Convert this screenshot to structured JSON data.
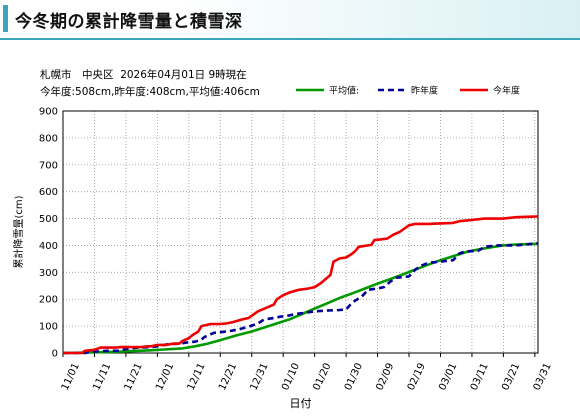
{
  "page": {
    "title": "今冬期の累計降雪量と積雪深",
    "location": "札幌市　中央区",
    "datetime": "2026年04月01日 9時現在",
    "summary": "今年度:508cm,昨年度:408cm,平均値:406cm"
  },
  "chart_data": {
    "type": "line",
    "ylabel": "累計降雪量(cm)",
    "xlabel": "日付",
    "ylim": [
      0,
      900
    ],
    "yticks": [
      0,
      100,
      200,
      300,
      400,
      500,
      600,
      700,
      800,
      900
    ],
    "xlim": [
      0,
      151
    ],
    "xticks": [
      {
        "d": 0,
        "label": "11/01"
      },
      {
        "d": 10,
        "label": "11/11"
      },
      {
        "d": 20,
        "label": "11/21"
      },
      {
        "d": 30,
        "label": "12/01"
      },
      {
        "d": 40,
        "label": "12/11"
      },
      {
        "d": 50,
        "label": "12/21"
      },
      {
        "d": 60,
        "label": "12/31"
      },
      {
        "d": 70,
        "label": "01/10"
      },
      {
        "d": 80,
        "label": "01/20"
      },
      {
        "d": 90,
        "label": "01/30"
      },
      {
        "d": 100,
        "label": "02/09"
      },
      {
        "d": 110,
        "label": "02/19"
      },
      {
        "d": 120,
        "label": "03/01"
      },
      {
        "d": 130,
        "label": "03/11"
      },
      {
        "d": 140,
        "label": "03/21"
      },
      {
        "d": 150,
        "label": "03/31"
      }
    ],
    "grid": true,
    "legend_position": "top-right",
    "series": [
      {
        "name": "平均値:",
        "color": "#009900",
        "dash": "solid",
        "points": [
          [
            0,
            0
          ],
          [
            8,
            2
          ],
          [
            12,
            3
          ],
          [
            18,
            5
          ],
          [
            22,
            7
          ],
          [
            28,
            10
          ],
          [
            32,
            13
          ],
          [
            38,
            17
          ],
          [
            42,
            25
          ],
          [
            46,
            35
          ],
          [
            50,
            48
          ],
          [
            55,
            65
          ],
          [
            60,
            80
          ],
          [
            64,
            95
          ],
          [
            68,
            110
          ],
          [
            72,
            125
          ],
          [
            76,
            145
          ],
          [
            80,
            165
          ],
          [
            84,
            185
          ],
          [
            88,
            205
          ],
          [
            92,
            222
          ],
          [
            96,
            240
          ],
          [
            100,
            258
          ],
          [
            104,
            275
          ],
          [
            108,
            292
          ],
          [
            112,
            310
          ],
          [
            116,
            328
          ],
          [
            120,
            345
          ],
          [
            124,
            360
          ],
          [
            128,
            375
          ],
          [
            132,
            385
          ],
          [
            136,
            393
          ],
          [
            140,
            400
          ],
          [
            144,
            403
          ],
          [
            148,
            405
          ],
          [
            151,
            406
          ]
        ]
      },
      {
        "name": "昨年度",
        "color": "#000099",
        "dash": "dashed",
        "points": [
          [
            0,
            0
          ],
          [
            7,
            0
          ],
          [
            8,
            3
          ],
          [
            10,
            5
          ],
          [
            14,
            8
          ],
          [
            18,
            8
          ],
          [
            20,
            15
          ],
          [
            24,
            20
          ],
          [
            28,
            22
          ],
          [
            30,
            25
          ],
          [
            33,
            32
          ],
          [
            37,
            35
          ],
          [
            40,
            40
          ],
          [
            42,
            42
          ],
          [
            44,
            50
          ],
          [
            45,
            60
          ],
          [
            48,
            75
          ],
          [
            52,
            80
          ],
          [
            53,
            82
          ],
          [
            56,
            88
          ],
          [
            58,
            95
          ],
          [
            60,
            102
          ],
          [
            62,
            110
          ],
          [
            64,
            125
          ],
          [
            67,
            130
          ],
          [
            69,
            135
          ],
          [
            72,
            140
          ],
          [
            74,
            145
          ],
          [
            77,
            150
          ],
          [
            80,
            155
          ],
          [
            84,
            158
          ],
          [
            88,
            160
          ],
          [
            90,
            162
          ],
          [
            92,
            188
          ],
          [
            95,
            210
          ],
          [
            97,
            235
          ],
          [
            100,
            240
          ],
          [
            102,
            245
          ],
          [
            104,
            265
          ],
          [
            106,
            280
          ],
          [
            110,
            285
          ],
          [
            112,
            310
          ],
          [
            114,
            325
          ],
          [
            116,
            335
          ],
          [
            120,
            340
          ],
          [
            124,
            345
          ],
          [
            126,
            370
          ],
          [
            128,
            378
          ],
          [
            132,
            380
          ],
          [
            134,
            395
          ],
          [
            138,
            400
          ],
          [
            144,
            400
          ],
          [
            151,
            408
          ]
        ]
      },
      {
        "name": "今年度",
        "color": "#ee0000",
        "dash": "solid",
        "points": [
          [
            0,
            0
          ],
          [
            6,
            0
          ],
          [
            7,
            8
          ],
          [
            10,
            12
          ],
          [
            12,
            20
          ],
          [
            17,
            20
          ],
          [
            18,
            22
          ],
          [
            25,
            22
          ],
          [
            27,
            25
          ],
          [
            28,
            25
          ],
          [
            30,
            30
          ],
          [
            33,
            30
          ],
          [
            35,
            35
          ],
          [
            37,
            35
          ],
          [
            38,
            45
          ],
          [
            40,
            55
          ],
          [
            41,
            65
          ],
          [
            43,
            80
          ],
          [
            44,
            100
          ],
          [
            47,
            108
          ],
          [
            50,
            108
          ],
          [
            52,
            110
          ],
          [
            54,
            115
          ],
          [
            57,
            125
          ],
          [
            59,
            130
          ],
          [
            62,
            155
          ],
          [
            65,
            170
          ],
          [
            67,
            180
          ],
          [
            68,
            200
          ],
          [
            70,
            215
          ],
          [
            72,
            225
          ],
          [
            75,
            235
          ],
          [
            78,
            240
          ],
          [
            80,
            245
          ],
          [
            82,
            260
          ],
          [
            84,
            280
          ],
          [
            85,
            290
          ],
          [
            86,
            340
          ],
          [
            88,
            352
          ],
          [
            90,
            355
          ],
          [
            92,
            370
          ],
          [
            93,
            380
          ],
          [
            94,
            395
          ],
          [
            98,
            402
          ],
          [
            99,
            420
          ],
          [
            103,
            425
          ],
          [
            105,
            440
          ],
          [
            107,
            450
          ],
          [
            110,
            475
          ],
          [
            112,
            480
          ],
          [
            116,
            480
          ],
          [
            120,
            482
          ],
          [
            124,
            484
          ],
          [
            126,
            490
          ],
          [
            130,
            495
          ],
          [
            134,
            500
          ],
          [
            140,
            500
          ],
          [
            144,
            505
          ],
          [
            151,
            508
          ]
        ]
      }
    ]
  }
}
